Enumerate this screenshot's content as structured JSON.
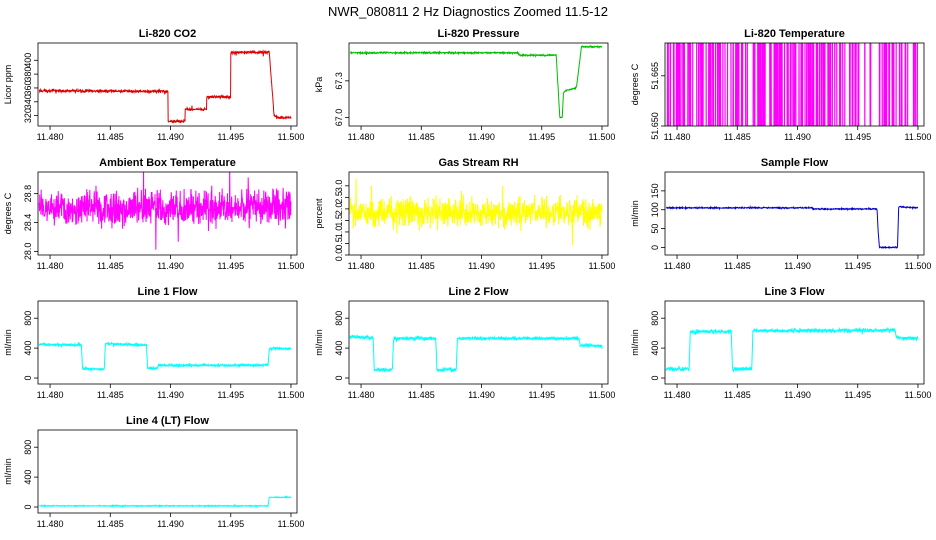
{
  "figure": {
    "title": "NWR_080811  2 Hz Diagnostics Zoomed 11.5-12"
  },
  "x_ticks": [
    "11.480",
    "11.485",
    "11.490",
    "11.495",
    "11.500"
  ],
  "xlim": [
    11.479,
    11.5005
  ],
  "chart_data": [
    {
      "type": "line",
      "title": "Li-820 CO2",
      "ylabel": "Licor ppm",
      "color": "#dd0000",
      "ylim": [
        305,
        425
      ],
      "yticks": [
        "320",
        "340",
        "360",
        "380",
        "400"
      ],
      "x": [
        11.4791,
        11.4898,
        11.4898,
        11.4912,
        11.4912,
        11.493,
        11.493,
        11.495,
        11.495,
        11.4982,
        11.4982,
        11.4986,
        11.499,
        11.5
      ],
      "values": [
        356,
        355,
        312,
        312,
        329,
        329,
        347,
        347,
        411,
        412,
        410,
        320,
        317,
        317
      ],
      "noise": 1.0
    },
    {
      "type": "line",
      "title": "Li-820 Pressure",
      "ylabel": "kPa",
      "color": "#00bb00",
      "ylim": [
        66.93,
        67.61
      ],
      "yticks": [
        "67.0",
        "67.3"
      ],
      "x": [
        11.4791,
        11.493,
        11.4932,
        11.4962,
        11.4965,
        11.4967,
        11.4968,
        11.497,
        11.4978,
        11.4979,
        11.4982,
        11.4983,
        11.5
      ],
      "values": [
        67.53,
        67.53,
        67.51,
        67.51,
        67.0,
        67.0,
        67.2,
        67.22,
        67.24,
        67.26,
        67.5,
        67.58,
        67.58
      ],
      "noise": 0.003
    },
    {
      "type": "line",
      "title": "Li-820 Temperature",
      "ylabel": "degrees C",
      "color": "#ff00ff",
      "ylim": [
        51.65,
        51.6748
      ],
      "yticks": [
        "51.650",
        "51.665"
      ],
      "digital": true,
      "levels": [
        51.65,
        51.675
      ],
      "x": [
        11.4791,
        11.5
      ],
      "values": [
        51.65,
        51.65
      ]
    },
    {
      "type": "line",
      "title": "Ambient Box Temperature",
      "ylabel": "degrees C",
      "color": "#ff00ff",
      "ylim": [
        27.95,
        29.1
      ],
      "yticks": [
        "28.0",
        "28.4",
        "28.8"
      ],
      "x": [
        11.4791,
        11.5
      ],
      "values": [
        28.6,
        28.6
      ],
      "noise": 0.12
    },
    {
      "type": "line",
      "title": "Gas Stream RH",
      "ylabel": "percent",
      "color": "#ffff00",
      "ylim": [
        0,
        3.6
      ],
      "yticks": [
        "0.0",
        "0.5",
        "1.0",
        "1.5",
        "2.0",
        "2.5",
        "3.0"
      ],
      "x": [
        11.4791,
        11.5
      ],
      "values": [
        1.85,
        1.85
      ],
      "noise": 0.3
    },
    {
      "type": "line",
      "title": "Sample Flow",
      "ylabel": "ml/min",
      "color": "#0000cc",
      "ylim": [
        -20,
        200
      ],
      "yticks": [
        "0",
        "50",
        "100",
        "150"
      ],
      "x": [
        11.4791,
        11.4912,
        11.4913,
        11.4966,
        11.4967,
        11.4968,
        11.4983,
        11.4984,
        11.5
      ],
      "values": [
        105,
        105,
        102,
        102,
        40,
        0,
        0,
        108,
        105
      ],
      "noise": 0.8
    },
    {
      "type": "line",
      "title": "Line 1 Flow",
      "ylabel": "ml/min",
      "color": "#00ffff",
      "ylim": [
        -80,
        1030
      ],
      "yticks": [
        "0",
        "400",
        "800"
      ],
      "x": [
        11.4791,
        11.4826,
        11.4827,
        11.4845,
        11.4846,
        11.488,
        11.4881,
        11.4889,
        11.489,
        11.4981,
        11.4982,
        11.5
      ],
      "values": [
        450,
        440,
        120,
        120,
        460,
        440,
        130,
        130,
        170,
        170,
        400,
        390
      ],
      "noise": 8
    },
    {
      "type": "line",
      "title": "Line 2 Flow",
      "ylabel": "ml/min",
      "color": "#00ffff",
      "ylim": [
        -80,
        1030
      ],
      "yticks": [
        "0",
        "400",
        "800"
      ],
      "x": [
        11.4791,
        11.481,
        11.4811,
        11.4826,
        11.4827,
        11.4862,
        11.4863,
        11.4879,
        11.488,
        11.4981,
        11.4982,
        11.5
      ],
      "values": [
        550,
        540,
        110,
        110,
        530,
        530,
        110,
        110,
        530,
        530,
        440,
        430
      ],
      "noise": 10
    },
    {
      "type": "line",
      "title": "Line 3 Flow",
      "ylabel": "ml/min",
      "color": "#00ffff",
      "ylim": [
        -80,
        1030
      ],
      "yticks": [
        "0",
        "400",
        "800"
      ],
      "x": [
        11.4791,
        11.481,
        11.4811,
        11.4845,
        11.4846,
        11.4862,
        11.4863,
        11.4981,
        11.4982,
        11.5
      ],
      "values": [
        120,
        120,
        620,
        620,
        120,
        120,
        630,
        640,
        540,
        530
      ],
      "noise": 12
    },
    {
      "type": "line",
      "title": "Line 4 (LT) Flow",
      "ylabel": "ml/min",
      "color": "#00ffff",
      "ylim": [
        -80,
        1030
      ],
      "yticks": [
        "0",
        "400",
        "800"
      ],
      "x": [
        11.4791,
        11.4981,
        11.4982,
        11.5
      ],
      "values": [
        15,
        15,
        130,
        130
      ],
      "noise": 3
    }
  ]
}
